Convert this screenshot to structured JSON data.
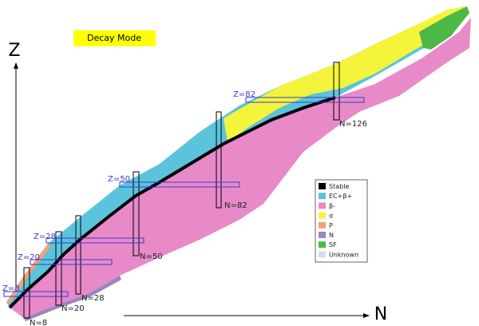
{
  "title": "Decay Mode",
  "axes": {
    "y": "Z",
    "x": "N"
  },
  "proton_magic": [
    "Z=8",
    "Z=20",
    "Z=28",
    "Z=50",
    "Z=82"
  ],
  "neutron_magic": [
    "N=8",
    "N=20",
    "N=28",
    "N=50",
    "N=82",
    "N=126"
  ],
  "legend": [
    {
      "label": "Stable",
      "color": "#000000"
    },
    {
      "label": "EC+β+",
      "color": "#5bc4dc"
    },
    {
      "label": "β-",
      "color": "#e88ac8"
    },
    {
      "label": "α",
      "color": "#f4f43c"
    },
    {
      "label": "P",
      "color": "#f4a078"
    },
    {
      "label": "N",
      "color": "#9c84c0"
    },
    {
      "label": "SF",
      "color": "#4cb848"
    },
    {
      "label": "Unknown",
      "color": "#d8d8f0"
    }
  ]
}
